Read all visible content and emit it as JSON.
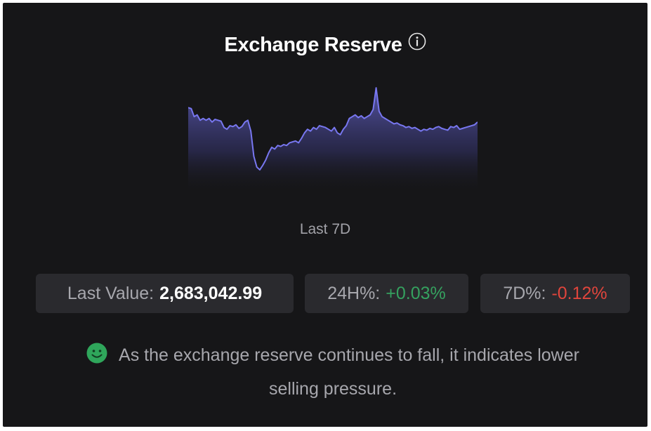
{
  "header": {
    "title": "Exchange Reserve",
    "info_icon": "info-circle-icon"
  },
  "chart": {
    "period_label": "Last 7D"
  },
  "chart_data": {
    "type": "area",
    "series": [
      {
        "values": [
          94,
          93,
          84,
          86,
          80,
          82,
          80,
          82,
          78,
          81,
          80,
          79,
          72,
          70,
          74,
          73,
          75,
          71,
          73,
          78,
          80,
          68,
          40,
          28,
          25,
          30,
          36,
          44,
          50,
          48,
          52,
          51,
          53,
          52,
          55,
          56,
          57,
          55,
          60,
          66,
          70,
          68,
          72,
          70,
          74,
          73,
          72,
          70,
          68,
          72,
          66,
          64,
          70,
          74,
          82,
          84,
          86,
          83,
          85,
          82,
          84,
          86,
          92,
          116,
          90,
          84,
          82,
          80,
          78,
          76,
          77,
          75,
          74,
          72,
          73,
          71,
          72,
          70,
          68,
          70,
          69,
          71,
          70,
          72,
          73,
          71,
          70,
          69,
          73,
          72,
          74,
          70,
          71,
          72,
          73,
          74,
          75,
          78
        ]
      }
    ],
    "color": "#7877f0",
    "grid": false,
    "axes_visible": false
  },
  "stats": {
    "last_value_label": "Last Value:",
    "last_value": "2,683,042.99",
    "change_24h_label": "24H%:",
    "change_24h": "+0.03%",
    "change_7d_label": "7D%:",
    "change_7d": "-0.12%"
  },
  "insight": {
    "icon": "smiley-face-icon",
    "text": "As the exchange reserve continues to fall, it indicates lower selling pressure."
  },
  "colors": {
    "background": "#161618",
    "stat_background": "#2a2a2e",
    "positive": "#35a15f",
    "negative": "#e0453c",
    "line": "#7877f0",
    "smiley": "#2fa65b"
  }
}
